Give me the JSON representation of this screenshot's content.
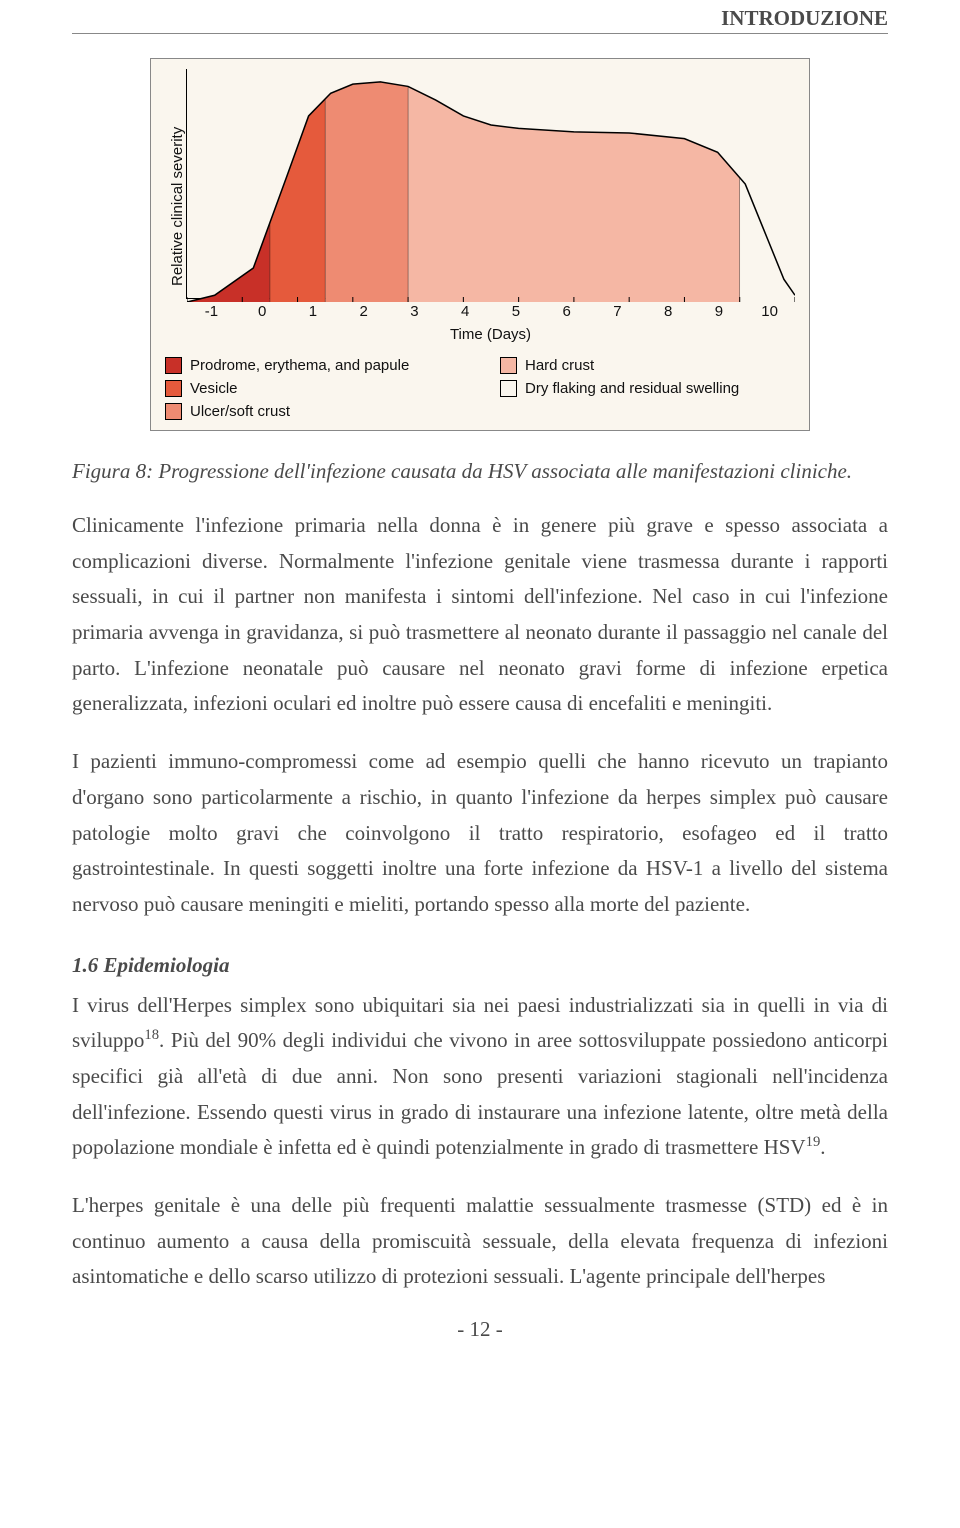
{
  "header": {
    "section_title": "INTRODUZIONE"
  },
  "figure": {
    "type": "area",
    "background_color": "#faf6ee",
    "border_color": "#888888",
    "axis_color": "#000000",
    "ylabel": "Relative clinical severity",
    "xlabel": "Time (Days)",
    "xticks": [
      "-1",
      "0",
      "1",
      "2",
      "3",
      "4",
      "5",
      "6",
      "7",
      "8",
      "9",
      "10"
    ],
    "xlim": [
      -1,
      10
    ],
    "label_fontsize": 15,
    "tick_fontsize": 15,
    "curve_points": [
      [
        -1,
        0
      ],
      [
        -0.5,
        3
      ],
      [
        0.2,
        15
      ],
      [
        0.8,
        55
      ],
      [
        1.2,
        82
      ],
      [
        1.6,
        92
      ],
      [
        2.0,
        96
      ],
      [
        2.5,
        97
      ],
      [
        3.0,
        95
      ],
      [
        3.5,
        89
      ],
      [
        4.0,
        82
      ],
      [
        4.5,
        78
      ],
      [
        5.0,
        76.5
      ],
      [
        6.0,
        75
      ],
      [
        7.0,
        74.5
      ],
      [
        8.0,
        72
      ],
      [
        8.6,
        66
      ],
      [
        9.1,
        52
      ],
      [
        9.5,
        28
      ],
      [
        9.8,
        10
      ],
      [
        10,
        3
      ]
    ],
    "phases": [
      {
        "label": "Prodrome, erythema, and papule",
        "xrange": [
          -1,
          0.5
        ],
        "color": "#c83028"
      },
      {
        "label": "Vesicle",
        "xrange": [
          0.5,
          1.5
        ],
        "color": "#e55a3c"
      },
      {
        "label": "Ulcer/soft crust",
        "xrange": [
          1.5,
          3
        ],
        "color": "#ee8b72"
      },
      {
        "label": "Hard crust",
        "xrange": [
          3,
          9
        ],
        "color": "#f5b7a4"
      },
      {
        "label": "Dry flaking and residual swelling",
        "xrange": [
          9,
          10
        ],
        "color": "#faf6ee"
      }
    ],
    "legend_order": [
      0,
      3,
      1,
      4,
      2
    ]
  },
  "caption": "Figura 8: Progressione dell'infezione causata da HSV associata alle manifestazioni cliniche.",
  "paragraphs": {
    "p1": "Clinicamente l'infezione primaria nella donna è in genere più grave e spesso associata a complicazioni diverse. Normalmente l'infezione genitale viene trasmessa durante i rapporti sessuali, in cui il partner non manifesta i sintomi dell'infezione. Nel caso in cui l'infezione primaria avvenga in gravidanza, si può trasmettere al neonato durante il passaggio nel canale del parto. L'infezione neonatale può causare nel neonato gravi forme di infezione erpetica generalizzata, infezioni oculari ed inoltre può essere causa di encefaliti e meningiti.",
    "p2": "I pazienti immuno-compromessi come ad esempio quelli che hanno ricevuto un trapianto d'organo sono particolarmente a rischio, in quanto l'infezione da herpes simplex può causare patologie molto gravi che coinvolgono il tratto respiratorio, esofageo ed il tratto gastrointestinale. In questi soggetti inoltre una forte infezione da HSV-1 a livello del sistema nervoso può causare meningiti e mieliti, portando spesso alla morte del paziente.",
    "section_heading": "1.6 Epidemiologia",
    "p3a": "I virus dell'Herpes simplex sono ubiquitari sia nei paesi industrializzati sia in quelli in via di sviluppo",
    "p3_sup1": "18",
    "p3b": ". Più del 90% degli individui che vivono in aree sottosviluppate possiedono anticorpi specifici già all'età di due anni. Non sono presenti variazioni stagionali nell'incidenza dell'infezione. Essendo questi virus in grado di instaurare una infezione latente, oltre metà della popolazione mondiale è infetta ed è quindi potenzialmente in grado di trasmettere HSV",
    "p3_sup2": "19",
    "p3c": ".",
    "p4": "L'herpes genitale è una delle più frequenti malattie sessualmente trasmesse (STD) ed è in continuo aumento a causa della promiscuità sessuale, della elevata frequenza di infezioni asintomatiche e dello scarso utilizzo di protezioni sessuali. L'agente principale dell'herpes"
  },
  "page_number": "- 12 -"
}
